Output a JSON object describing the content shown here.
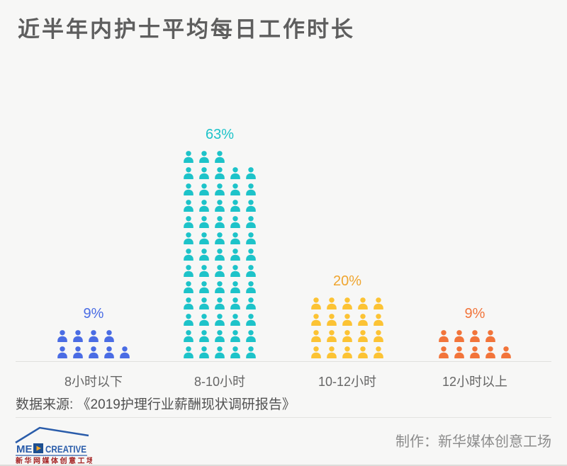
{
  "page": {
    "title": "近半年内护士平均每日工作时长",
    "background_color": "#f7f7f6",
    "title_color": "#5e5e5e"
  },
  "chart_data": {
    "type": "pictogram-bar",
    "title": "近半年内护士平均每日工作时长",
    "unit": "1 person icon = 1%",
    "icons_per_row": 5,
    "categories": [
      "8小时以下",
      "8-10小时",
      "10-12小时",
      "12小时以上"
    ],
    "values": [
      9,
      63,
      20,
      9
    ],
    "labels": [
      "9%",
      "63%",
      "20%",
      "9%"
    ],
    "colors": [
      "#4a6ce4",
      "#1dc3c9",
      "#fcc334",
      "#f2743a"
    ],
    "label_colors": [
      "#4a6ce4",
      "#1dc3c9",
      "#efa52f",
      "#f2743a"
    ],
    "baseline_color": "#e0e0de",
    "source": "数据来源: 《2019护理行业薪酬现状调研报告》",
    "legend_position": "none",
    "grid": false
  },
  "footer": {
    "credit": "制作：新华媒体创意工场",
    "logo": {
      "prefix": "ME",
      "suffix": "CREATIVE",
      "subtitle": "新华网媒体创意工场",
      "blue": "#2a5caa",
      "square_blue": "#1d4f91",
      "play_color": "#f5a623",
      "red": "#a32121"
    }
  }
}
